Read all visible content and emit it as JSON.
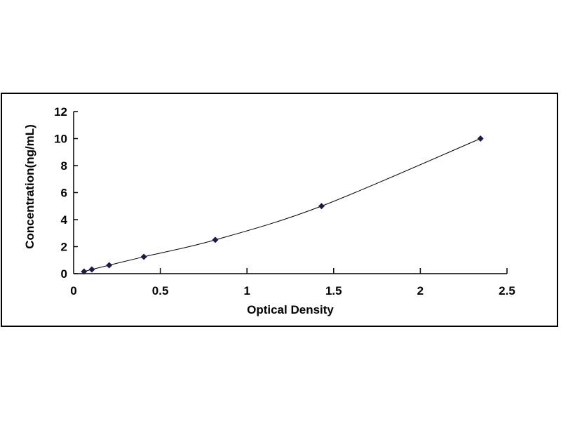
{
  "chart_data": {
    "type": "scatter",
    "title": "",
    "xlabel": "Optical Density",
    "ylabel": "Concentration(ng/mL)",
    "xlim": [
      0,
      2.5
    ],
    "ylim": [
      0,
      12
    ],
    "xticks": [
      "0",
      "0.5",
      "1",
      "1.5",
      "2",
      "2.5"
    ],
    "yticks": [
      "0",
      "2",
      "4",
      "6",
      "8",
      "10",
      "12"
    ],
    "grid": false,
    "legend": "none",
    "marker_color": "#1a1a4e",
    "line_color": "#000000",
    "trendline": "smooth curve",
    "x": [
      0.06,
      0.105,
      0.205,
      0.405,
      0.817,
      1.43,
      2.347
    ],
    "y": [
      0.156,
      0.312,
      0.625,
      1.25,
      2.5,
      5,
      10
    ]
  }
}
